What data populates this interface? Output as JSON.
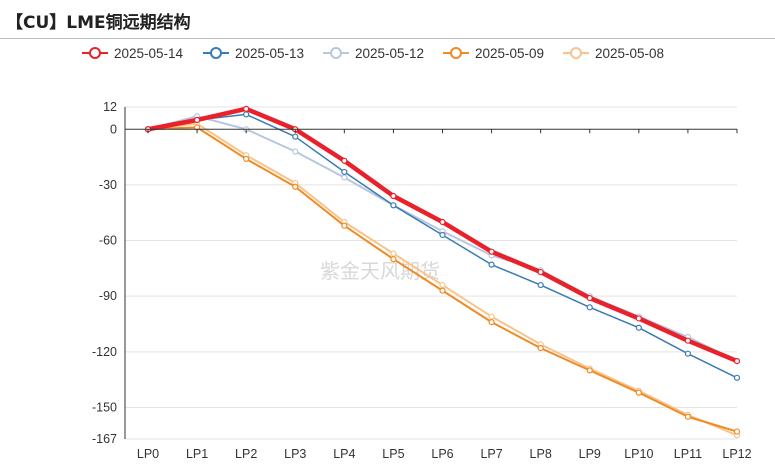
{
  "title": "【CU】LME铜远期结构",
  "watermark": "紫金天风期货",
  "chart_data": {
    "type": "line",
    "categories": [
      "LP0",
      "LP1",
      "LP2",
      "LP3",
      "LP4",
      "LP5",
      "LP6",
      "LP7",
      "LP8",
      "LP9",
      "LP10",
      "LP11",
      "LP12"
    ],
    "y_ticks": [
      12,
      0,
      -30,
      -60,
      -90,
      -120,
      -150,
      -167
    ],
    "ylim": [
      -167,
      12
    ],
    "grid": true,
    "legend_position": "top",
    "series": [
      {
        "name": "2025-05-14",
        "color": "#e8212b",
        "width": 4.5,
        "values": [
          0,
          5,
          11,
          0,
          -17,
          -36,
          -50,
          -66,
          -77,
          -91,
          -102,
          -114,
          -125
        ]
      },
      {
        "name": "2025-05-13",
        "color": "#3a7bb5",
        "width": 1.5,
        "values": [
          0,
          5,
          8,
          -4,
          -23,
          -41,
          -57,
          -73,
          -84,
          -96,
          -107,
          -121,
          -134
        ]
      },
      {
        "name": "2025-05-12",
        "color": "#b8c7e0",
        "width": 2,
        "values": [
          0,
          7,
          0,
          -12,
          -26,
          -41,
          -55,
          -68,
          -76,
          -90,
          -101,
          -112,
          -125
        ]
      },
      {
        "name": "2025-05-09",
        "color": "#f08a24",
        "width": 2,
        "values": [
          0,
          1,
          -16,
          -31,
          -52,
          -70,
          -87,
          -104,
          -118,
          -130,
          -142,
          -155,
          -163
        ]
      },
      {
        "name": "2025-05-08",
        "color": "#f7c58c",
        "width": 2,
        "values": [
          0,
          3,
          -14,
          -29,
          -50,
          -67,
          -84,
          -101,
          -116,
          -129,
          -141,
          -154,
          -165
        ]
      }
    ]
  }
}
